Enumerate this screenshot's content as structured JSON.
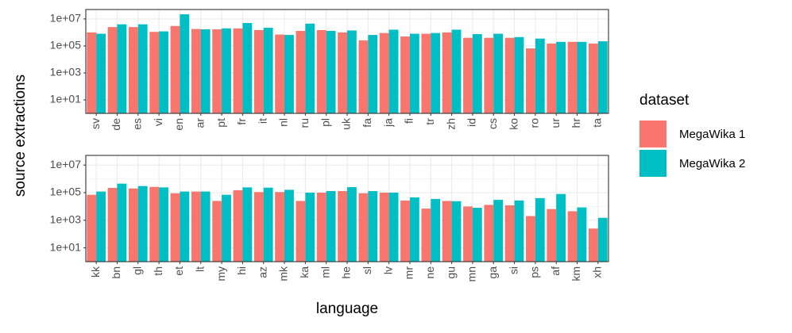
{
  "chart_data": {
    "type": "bar",
    "y_label": "source extractions",
    "x_label": "language",
    "legend_title": "dataset",
    "log_scale": true,
    "grid": true,
    "ylim": [
      1,
      50000000
    ],
    "yticks": [
      {
        "value": 10,
        "label": "1e+01"
      },
      {
        "value": 1000,
        "label": "1e+03"
      },
      {
        "value": 100000,
        "label": "1e+05"
      },
      {
        "value": 10000000,
        "label": "1e+07"
      }
    ],
    "series": [
      {
        "name": "MegaWika 1",
        "color": "#F8766D"
      },
      {
        "name": "MegaWika 2",
        "color": "#00BFC4"
      }
    ],
    "panels": [
      {
        "categories": [
          "sv",
          "de",
          "es",
          "vi",
          "en",
          "ar",
          "pt",
          "fr",
          "it",
          "nl",
          "ru",
          "pl",
          "uk",
          "fa",
          "ja",
          "fi",
          "tr",
          "zh",
          "id",
          "cs",
          "ko",
          "ro",
          "ur",
          "hr",
          "ta"
        ],
        "series": [
          {
            "values": [
              1000000,
              2500000,
              2500000,
              1100000,
              3000000,
              1800000,
              1700000,
              2000000,
              1500000,
              700000,
              1300000,
              1500000,
              1000000,
              260000,
              900000,
              500000,
              800000,
              1000000,
              400000,
              400000,
              400000,
              65000,
              150000,
              200000,
              150000
            ]
          },
          {
            "values": [
              800000,
              4000000,
              4000000,
              1200000,
              22000000,
              1700000,
              2000000,
              5000000,
              2200000,
              650000,
              4500000,
              1300000,
              1400000,
              650000,
              1600000,
              800000,
              900000,
              1600000,
              750000,
              800000,
              450000,
              350000,
              200000,
              200000,
              220000
            ]
          }
        ]
      },
      {
        "categories": [
          "kk",
          "bn",
          "gl",
          "th",
          "et",
          "lt",
          "my",
          "hi",
          "az",
          "mk",
          "ka",
          "ml",
          "he",
          "sl",
          "lv",
          "mr",
          "ne",
          "gu",
          "mn",
          "ga",
          "si",
          "ps",
          "af",
          "km",
          "xh"
        ],
        "series": [
          {
            "values": [
              70000,
              220000,
              200000,
              260000,
              90000,
              120000,
              25000,
              150000,
              110000,
              110000,
              25000,
              100000,
              130000,
              90000,
              100000,
              27000,
              7000,
              25000,
              10000,
              13000,
              12000,
              2000,
              6500,
              4500,
              250
            ]
          },
          {
            "values": [
              120000,
              450000,
              300000,
              240000,
              120000,
              120000,
              70000,
              240000,
              230000,
              160000,
              100000,
              130000,
              250000,
              130000,
              100000,
              45000,
              35000,
              24000,
              8000,
              30000,
              27000,
              40000,
              80000,
              8500,
              1500
            ]
          }
        ]
      }
    ]
  }
}
